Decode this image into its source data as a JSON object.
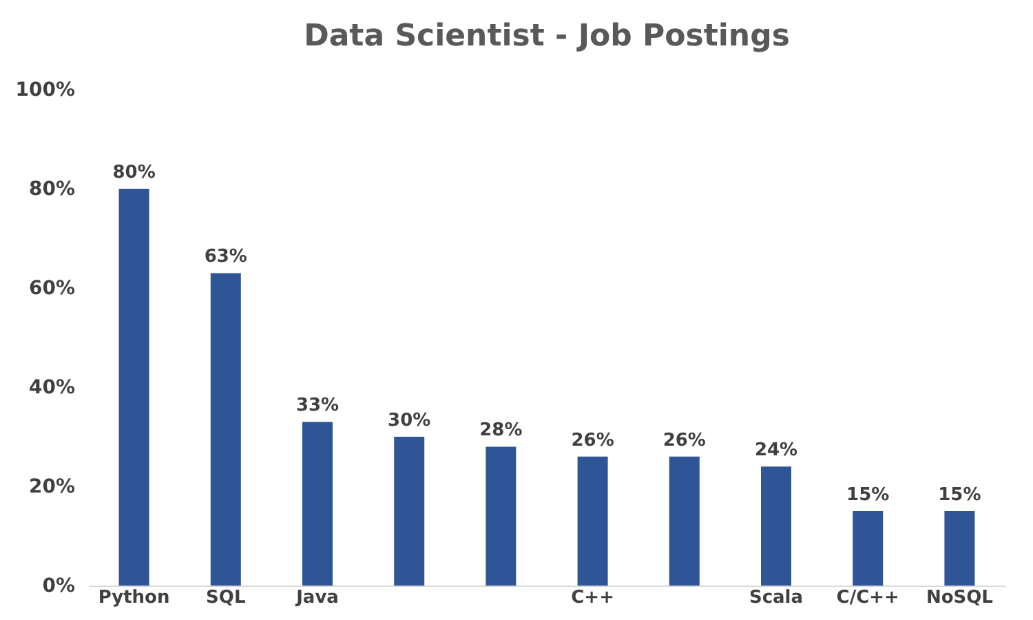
{
  "chart_data": {
    "type": "bar",
    "title": "Data Scientist - Job Postings",
    "categories": [
      "Python",
      "SQL",
      "Java",
      null,
      null,
      "C++",
      null,
      "Scala",
      "C/C++",
      "NoSQL"
    ],
    "values": [
      80,
      63,
      33,
      30,
      28,
      26,
      26,
      24,
      15,
      15
    ],
    "value_labels": [
      "80%",
      "63%",
      "33%",
      "30%",
      "28%",
      "26%",
      "26%",
      "24%",
      "15%",
      "15%"
    ],
    "color": "#2f5597",
    "ylim": [
      0,
      100
    ],
    "yticks": [
      {
        "value": 0,
        "label": "0%"
      },
      {
        "value": 20,
        "label": "20%"
      },
      {
        "value": 40,
        "label": "40%"
      },
      {
        "value": 60,
        "label": "60%"
      },
      {
        "value": 80,
        "label": "80%"
      },
      {
        "value": 100,
        "label": "100%"
      }
    ],
    "grid": false
  }
}
